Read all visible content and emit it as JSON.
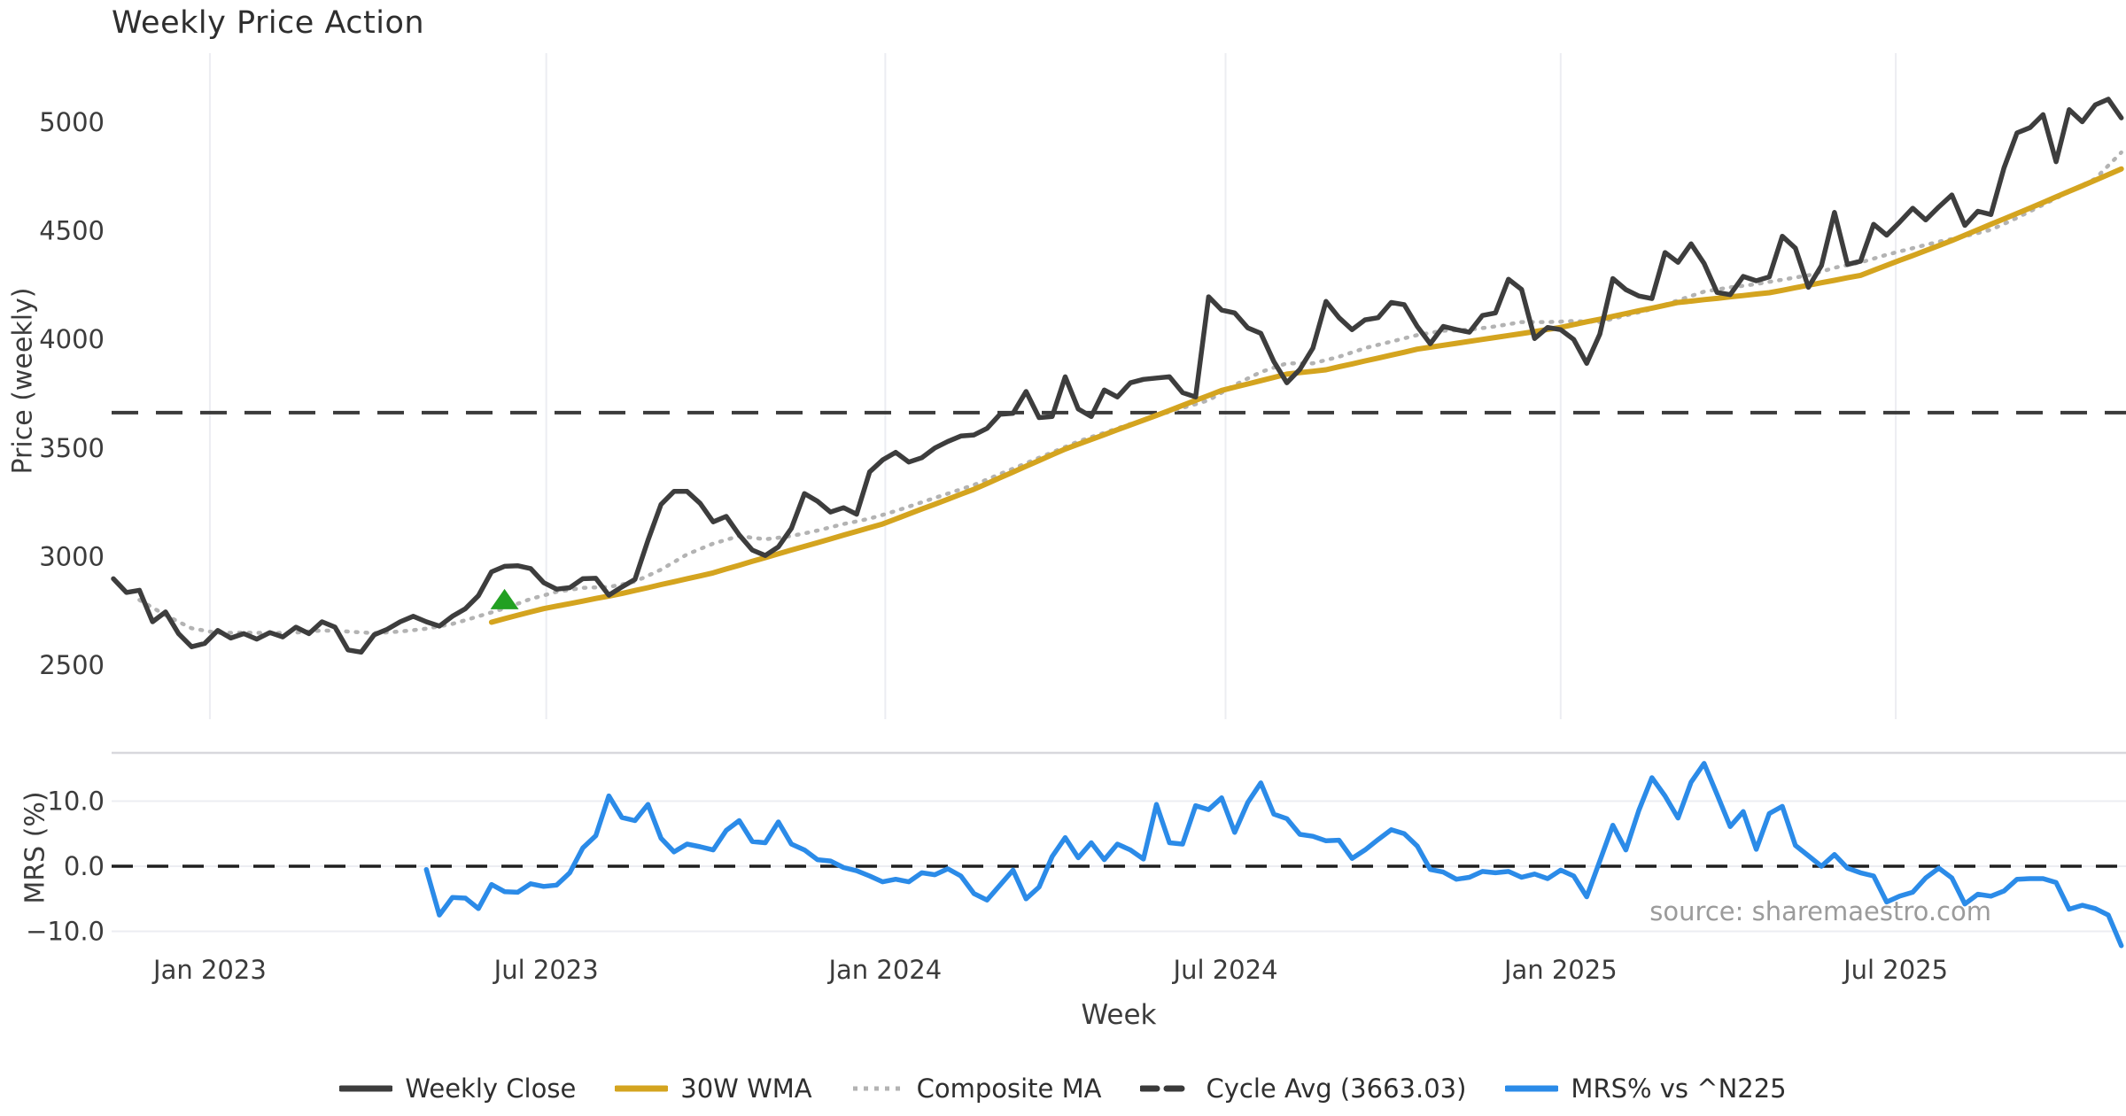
{
  "source_text": "source: sharemaestro.com",
  "colors": {
    "weekly_close": "#3d3d3d",
    "wma30": "#d4a41f",
    "composite_ma": "#b3b3b3",
    "cycle_avg": "#3a3a3a",
    "mrs": "#2b8be8",
    "signal_marker": "#22a022",
    "gridline": "#ecedf2",
    "panel_spine": "#d8d8dd",
    "tick_text": "#3c3c3c",
    "zero_line": "#1f1f1f"
  },
  "chart_data": {
    "type": "line",
    "title": "Weekly Price Action",
    "x": {
      "label": "Week",
      "unit": "weeks",
      "total_weeks": 155,
      "ticks": [
        {
          "label": "Jan 2023",
          "week": 7.4
        },
        {
          "label": "Jul 2023",
          "week": 33.2
        },
        {
          "label": "Jan 2024",
          "week": 59.2
        },
        {
          "label": "Jul 2024",
          "week": 85.3
        },
        {
          "label": "Jan 2025",
          "week": 111.0
        },
        {
          "label": "Jul 2025",
          "week": 136.7
        }
      ]
    },
    "panels": [
      {
        "name": "price",
        "ylabel": "Price (weekly)",
        "yticks": [
          2500,
          3000,
          3500,
          4000,
          4500,
          5000
        ],
        "ylim": [
          2260,
          5320
        ],
        "grid": "vertical-only",
        "cycle_avg": 3663.03,
        "signal_marker": {
          "shape": "triangle-up",
          "week": 30,
          "value": 2798
        }
      },
      {
        "name": "mrs",
        "ylabel": "MRS (%)",
        "yticks": [
          10.0,
          0.0,
          -10.0
        ],
        "ytick_labels": [
          "10.0",
          "0.0",
          "−10.0"
        ],
        "ylim": [
          -13.5,
          17.4
        ],
        "grid": "horizontal-only",
        "zero_line": 0.0
      }
    ],
    "legend": [
      {
        "label": "Weekly Close",
        "style": "solid",
        "color": "#3d3d3d"
      },
      {
        "label": "30W WMA",
        "style": "solid",
        "color": "#d4a41f"
      },
      {
        "label": "Composite MA",
        "style": "dotted",
        "color": "#b3b3b3"
      },
      {
        "label": "Cycle Avg (3663.03)",
        "style": "dashed",
        "color": "#3a3a3a"
      },
      {
        "label": "MRS% vs ^N225",
        "style": "solid",
        "color": "#2b8be8"
      }
    ],
    "series": [
      {
        "name": "Weekly Close",
        "panel": "price",
        "start_week": 0,
        "values": [
          2898,
          2835,
          2845,
          2700,
          2745,
          2645,
          2585,
          2600,
          2660,
          2625,
          2645,
          2620,
          2650,
          2630,
          2675,
          2645,
          2700,
          2675,
          2570,
          2560,
          2640,
          2665,
          2700,
          2725,
          2700,
          2680,
          2725,
          2760,
          2820,
          2930,
          2955,
          2958,
          2945,
          2880,
          2850,
          2857,
          2898,
          2900,
          2822,
          2860,
          2895,
          3075,
          3240,
          3300,
          3300,
          3245,
          3160,
          3185,
          3100,
          3030,
          3005,
          3045,
          3130,
          3290,
          3255,
          3205,
          3225,
          3195,
          3390,
          3445,
          3480,
          3435,
          3455,
          3500,
          3530,
          3555,
          3560,
          3590,
          3655,
          3660,
          3760,
          3640,
          3645,
          3828,
          3680,
          3645,
          3767,
          3735,
          3800,
          3816,
          3822,
          3828,
          3755,
          3735,
          4196,
          4135,
          4122,
          4053,
          4028,
          3898,
          3800,
          3862,
          3960,
          4175,
          4100,
          4045,
          4090,
          4100,
          4170,
          4160,
          4060,
          3980,
          4060,
          4045,
          4033,
          4110,
          4122,
          4277,
          4230,
          4004,
          4055,
          4045,
          4000,
          3890,
          4024,
          4280,
          4229,
          4200,
          4188,
          4400,
          4355,
          4440,
          4350,
          4216,
          4206,
          4290,
          4270,
          4288,
          4475,
          4420,
          4240,
          4340,
          4585,
          4345,
          4360,
          4530,
          4480,
          4540,
          4604,
          4550,
          4610,
          4665,
          4525,
          4590,
          4575,
          4790,
          4951,
          4975,
          5035,
          4818,
          5058,
          5002,
          5080,
          5106,
          5020
        ]
      },
      {
        "name": "30W WMA",
        "panel": "price",
        "start_week": 29,
        "values": [
          2698,
          2714,
          2730,
          2745,
          2760,
          2772,
          2783,
          2795,
          2807,
          2818,
          2830,
          2844,
          2857,
          2871,
          2884,
          2898,
          2911,
          2925,
          2943,
          2960,
          2978,
          2995,
          3013,
          3030,
          3047,
          3064,
          3081,
          3099,
          3116,
          3133,
          3150,
          3173,
          3196,
          3219,
          3241,
          3264,
          3287,
          3310,
          3336,
          3363,
          3389,
          3416,
          3442,
          3469,
          3495,
          3517,
          3539,
          3561,
          3584,
          3606,
          3628,
          3650,
          3673,
          3696,
          3719,
          3742,
          3765,
          3780,
          3795,
          3810,
          3825,
          3840,
          3847,
          3853,
          3860,
          3874,
          3887,
          3901,
          3914,
          3928,
          3941,
          3955,
          3964,
          3973,
          3982,
          3991,
          4000,
          4009,
          4018,
          4027,
          4036,
          4046,
          4055,
          4068,
          4081,
          4093,
          4106,
          4119,
          4132,
          4144,
          4157,
          4170,
          4176,
          4183,
          4189,
          4196,
          4202,
          4209,
          4215,
          4226,
          4238,
          4249,
          4261,
          4272,
          4284,
          4295,
          4318,
          4341,
          4364,
          4386,
          4409,
          4432,
          4455,
          4480,
          4505,
          4530,
          4555,
          4580,
          4605,
          4630,
          4656,
          4682,
          4707,
          4733,
          4759,
          4785
        ]
      },
      {
        "name": "Composite MA",
        "panel": "price",
        "start_week": 2,
        "values": [
          2800,
          2765,
          2730,
          2700,
          2670,
          2659,
          2648,
          2649,
          2650,
          2649,
          2648,
          2649,
          2650,
          2655,
          2660,
          2658,
          2655,
          2651,
          2648,
          2651,
          2655,
          2661,
          2668,
          2679,
          2690,
          2707,
          2725,
          2743,
          2762,
          2783,
          2805,
          2821,
          2838,
          2847,
          2856,
          2858,
          2860,
          2872,
          2885,
          2912,
          2940,
          2975,
          3010,
          3035,
          3060,
          3077,
          3095,
          3087,
          3080,
          3087,
          3095,
          3107,
          3120,
          3135,
          3150,
          3162,
          3175,
          3192,
          3210,
          3230,
          3250,
          3270,
          3290,
          3310,
          3330,
          3355,
          3380,
          3405,
          3430,
          3455,
          3480,
          3505,
          3530,
          3550,
          3570,
          3590,
          3610,
          3630,
          3650,
          3667,
          3685,
          3702,
          3720,
          3755,
          3790,
          3820,
          3850,
          3870,
          3890,
          3890,
          3890,
          3905,
          3920,
          3940,
          3960,
          3975,
          3990,
          4005,
          4020,
          4030,
          4040,
          4042,
          4045,
          4052,
          4060,
          4070,
          4080,
          4080,
          4080,
          4082,
          4085,
          4082,
          4080,
          4095,
          4110,
          4125,
          4140,
          4160,
          4180,
          4200,
          4220,
          4230,
          4240,
          4247,
          4255,
          4265,
          4275,
          4285,
          4295,
          4312,
          4330,
          4342,
          4355,
          4372,
          4390,
          4405,
          4420,
          4435,
          4450,
          4462,
          4475,
          4490,
          4505,
          4532,
          4560,
          4590,
          4620,
          4650,
          4680,
          4710,
          4740,
          4800,
          4861
        ]
      },
      {
        "name": "MRS% vs ^N225",
        "panel": "mrs",
        "start_week": 24,
        "values": [
          -0.5,
          -7.5,
          -4.8,
          -4.9,
          -6.5,
          -2.8,
          -3.9,
          -4.0,
          -2.7,
          -3.1,
          -2.9,
          -1.0,
          2.8,
          4.7,
          10.8,
          7.5,
          7.0,
          9.5,
          4.3,
          2.2,
          3.4,
          3.0,
          2.5,
          5.5,
          7.0,
          3.8,
          3.6,
          6.8,
          3.4,
          2.5,
          1.0,
          0.8,
          -0.2,
          -0.7,
          -1.5,
          -2.4,
          -2.0,
          -2.4,
          -1.0,
          -1.3,
          -0.4,
          -1.5,
          -4.2,
          -5.2,
          -2.9,
          -0.6,
          -5.0,
          -3.2,
          1.5,
          4.4,
          1.3,
          3.6,
          1.0,
          3.4,
          2.5,
          1.1,
          9.5,
          3.6,
          3.4,
          9.3,
          8.7,
          10.5,
          5.2,
          9.8,
          12.8,
          8.0,
          7.3,
          4.9,
          4.6,
          3.9,
          4.0,
          1.2,
          2.5,
          4.1,
          5.6,
          5.0,
          3.1,
          -0.5,
          -0.9,
          -2.0,
          -1.7,
          -0.8,
          -1.0,
          -0.8,
          -1.7,
          -1.2,
          -1.9,
          -0.6,
          -1.5,
          -4.7,
          0.8,
          6.3,
          2.5,
          8.6,
          13.6,
          10.8,
          7.4,
          12.9,
          15.8,
          11.0,
          6.1,
          8.4,
          2.6,
          8.1,
          9.2,
          3.2,
          1.6,
          0.0,
          1.8,
          -0.3,
          -1.0,
          -1.5,
          -5.5,
          -4.6,
          -4.0,
          -1.8,
          -0.3,
          -1.8,
          -5.8,
          -4.3,
          -4.6,
          -3.8,
          -2.0,
          -1.9,
          -1.9,
          -2.5,
          -6.6,
          -6.0,
          -6.5,
          -7.5,
          -12.2
        ]
      }
    ]
  }
}
